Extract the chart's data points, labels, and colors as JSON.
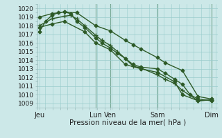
{
  "xlabel": "Pression niveau de la mer( hPa )",
  "background_color": "#cce8e8",
  "grid_color": "#99cccc",
  "line_color": "#2d5a27",
  "vline_color": "#336633",
  "ylim": [
    1008.5,
    1020.5
  ],
  "xlim": [
    0,
    230
  ],
  "yticks": [
    1009,
    1010,
    1011,
    1012,
    1013,
    1014,
    1015,
    1016,
    1017,
    1018,
    1019,
    1020
  ],
  "xtick_positions": [
    2,
    74,
    93,
    153,
    222
  ],
  "xtick_labels": [
    "Jeu",
    "Lun",
    "Ven",
    "Sam",
    "Dim"
  ],
  "vlines": [
    74,
    93,
    153,
    222
  ],
  "lines": [
    {
      "x": [
        2,
        10,
        18,
        26,
        34,
        42,
        50,
        60,
        74,
        82,
        93,
        102,
        112,
        122,
        132,
        153,
        163,
        175,
        185,
        195,
        205,
        222
      ],
      "y": [
        1017.3,
        1018.5,
        1019.2,
        1019.5,
        1019.6,
        1019.4,
        1018.5,
        1017.8,
        1016.6,
        1016.0,
        1015.4,
        1014.8,
        1014.2,
        1013.5,
        1013.2,
        1013.0,
        1012.5,
        1011.8,
        1011.2,
        1010.0,
        1009.5,
        1009.3
      ],
      "marker": "D",
      "markersize": 2.5,
      "linewidth": 1.0
    },
    {
      "x": [
        2,
        18,
        34,
        50,
        74,
        93,
        112,
        122,
        132,
        153,
        163,
        185,
        205,
        222
      ],
      "y": [
        1019.0,
        1019.4,
        1019.6,
        1019.5,
        1018.0,
        1017.4,
        1016.3,
        1015.8,
        1015.3,
        1014.3,
        1013.7,
        1012.8,
        1009.8,
        1009.5
      ],
      "marker": "D",
      "markersize": 2.5,
      "linewidth": 1.0
    },
    {
      "x": [
        2,
        18,
        34,
        42,
        50,
        60,
        74,
        82,
        93,
        102,
        112,
        122,
        132,
        153,
        163,
        175,
        185,
        205,
        222
      ],
      "y": [
        1018.0,
        1018.8,
        1019.1,
        1019.2,
        1018.8,
        1018.0,
        1016.9,
        1016.3,
        1015.7,
        1015.0,
        1014.2,
        1013.3,
        1013.1,
        1012.3,
        1011.8,
        1011.3,
        1010.5,
        1009.3,
        1009.4
      ],
      "marker": "+",
      "markersize": 4,
      "linewidth": 1.0
    },
    {
      "x": [
        2,
        18,
        34,
        60,
        74,
        93,
        112,
        132,
        153,
        175,
        185,
        205,
        222
      ],
      "y": [
        1017.8,
        1018.2,
        1018.5,
        1017.3,
        1016.0,
        1015.2,
        1013.5,
        1013.0,
        1012.6,
        1011.5,
        1010.0,
        1009.3,
        1009.4
      ],
      "marker": "D",
      "markersize": 2.5,
      "linewidth": 1.0
    }
  ],
  "xlabel_fontsize": 7.5,
  "ytick_fontsize": 6.5,
  "xtick_fontsize": 7.0
}
